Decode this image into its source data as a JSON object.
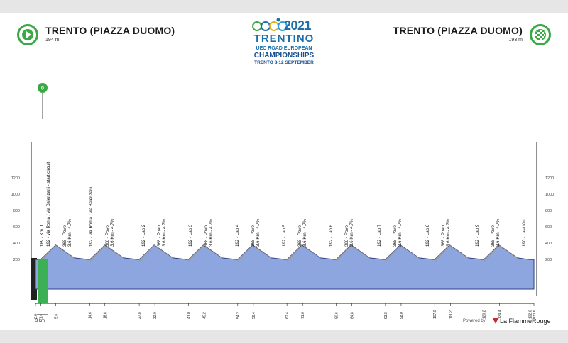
{
  "header": {
    "start": {
      "name": "TRENTO (PIAZZA DUOMO)",
      "altitude": "194 m"
    },
    "finish": {
      "name": "TRENTO (PIAZZA DUOMO)",
      "altitude": "193 m"
    }
  },
  "logo": {
    "year": "2021",
    "main": "TRENTINO",
    "line1": "UEC ROAD EUROPEAN",
    "line2": "CHAMPIONSHIPS",
    "line3": "TRENTO 8-12 SEPTEMBER"
  },
  "start_marker": "0",
  "colors": {
    "accent_green": "#3aa845",
    "profile_fill": "#8ea6e0",
    "profile_edge": "#2f3d8c",
    "climb_grey": "#9a9a9a",
    "start_bar": "#3cb054"
  },
  "elevation_axis": [
    "1200",
    "1000",
    "800",
    "600",
    "400",
    "200"
  ],
  "waypoints": [
    {
      "label": "189 - Km 0",
      "km": null
    },
    {
      "label": "192 - via Roma / via Belenzani - start circuit",
      "km": null
    },
    {
      "label": "368 - Povo",
      "km": null
    },
    {
      "label": "3.6 Km - 4.7%",
      "km": null
    },
    {
      "label": "192 - via Roma / via Belenzani",
      "km": null
    },
    {
      "label": "368 - Povo",
      "km": null
    },
    {
      "label": "3.6 Km - 4.7%",
      "km": null
    },
    {
      "label": "192 - Lap 2",
      "km": null
    },
    {
      "label": "368 - Povo",
      "km": null
    },
    {
      "label": "3.6 Km - 4.7%",
      "km": null
    },
    {
      "label": "192 - Lap 3",
      "km": null
    },
    {
      "label": "368 - Povo",
      "km": null
    },
    {
      "label": "3.6 Km - 4.7%",
      "km": null
    },
    {
      "label": "192 - Lap 4",
      "km": null
    },
    {
      "label": "368 - Povo",
      "km": null
    },
    {
      "label": "3.6 Km - 4.7%",
      "km": null
    },
    {
      "label": "192 - Lap 5",
      "km": null
    },
    {
      "label": "368 - Povo",
      "km": null
    },
    {
      "label": "3.6 Km - 4.7%",
      "km": null
    },
    {
      "label": "192 - Lap 6",
      "km": null
    },
    {
      "label": "368 - Povo",
      "km": null
    },
    {
      "label": "3.6 Km - 4.7%",
      "km": null
    },
    {
      "label": "192 - Lap 7",
      "km": null
    },
    {
      "label": "368 - Povo",
      "km": null
    },
    {
      "label": "3.6 Km - 4.7%",
      "km": null
    },
    {
      "label": "192 - Lap 8",
      "km": null
    },
    {
      "label": "368 - Povo",
      "km": null
    },
    {
      "label": "3.6 Km - 4.7%",
      "km": null
    },
    {
      "label": "192 - Lap 9",
      "km": null
    },
    {
      "label": "368 - Povo",
      "km": null
    },
    {
      "label": "3.6 Km - 4.7%",
      "km": null
    },
    {
      "label": "190 - Last Km",
      "km": null
    }
  ],
  "km_marks": [
    "0.0",
    "1.4",
    "5.4",
    "14.6",
    "18.6",
    "27.8",
    "32.0",
    "41.0",
    "45.2",
    "54.2",
    "58.4",
    "67.4",
    "71.6",
    "80.6",
    "84.8",
    "93.8",
    "98.0",
    "107.0",
    "111.2",
    "120.2",
    "124.4",
    "132.6",
    "133.6"
  ],
  "footer": {
    "scale": "3 km",
    "powered": "Powered by",
    "brand": "La FlammeRouge"
  }
}
